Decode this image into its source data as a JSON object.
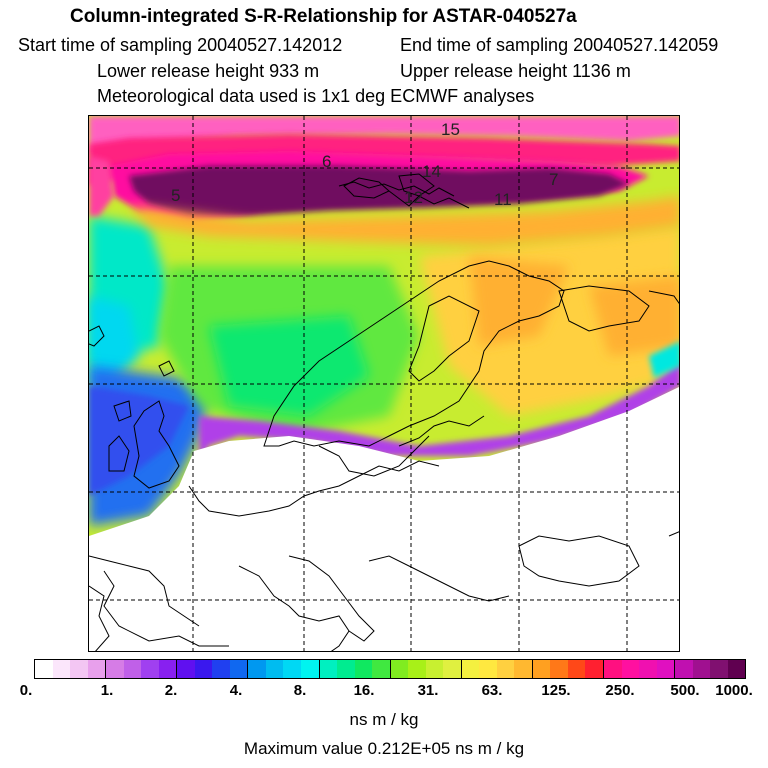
{
  "header": {
    "title": "Column-integrated S-R-Relationship for ASTAR-040527a",
    "start_time": "Start time of sampling 20040527.142012",
    "end_time": "End time of sampling 20040527.142059",
    "lower_release": "Lower release height  933 m",
    "upper_release": "Upper release height 1136 m",
    "met_data": "Meteorological data used is 1x1 deg ECMWF analyses"
  },
  "map": {
    "trajectory_labels": [
      "15",
      "6",
      "14",
      "5",
      "7",
      "11",
      "12"
    ]
  },
  "colorbar": {
    "ticks": [
      "0.",
      "1.",
      "2.",
      "4.",
      "8.",
      "16.",
      "31.",
      "63.",
      "125.",
      "250.",
      "500.",
      "1000."
    ],
    "colors": [
      "#ffffff",
      "#fbe6fb",
      "#f3c6f3",
      "#e8a0ec",
      "#d67ce6",
      "#c060e8",
      "#a040f0",
      "#8820f0",
      "#6010f0",
      "#3a18ee",
      "#2040f0",
      "#1068f0",
      "#0098f0",
      "#00bcf0",
      "#00d8f4",
      "#00f4f0",
      "#00f0c0",
      "#00ec90",
      "#10e860",
      "#40e840",
      "#80ec20",
      "#a8f018",
      "#c8f030",
      "#e0f040",
      "#f4f040",
      "#ffe840",
      "#ffd040",
      "#ffb830",
      "#ffa020",
      "#ff7818",
      "#ff4818",
      "#ff2030",
      "#ff1080",
      "#ff10a0",
      "#f010b0",
      "#e010c0",
      "#c010b0",
      "#a01090",
      "#801070",
      "#600050"
    ],
    "units": "ns m / kg"
  },
  "footer": {
    "max_value": "Maximum value  0.212E+05 ns m / kg"
  }
}
